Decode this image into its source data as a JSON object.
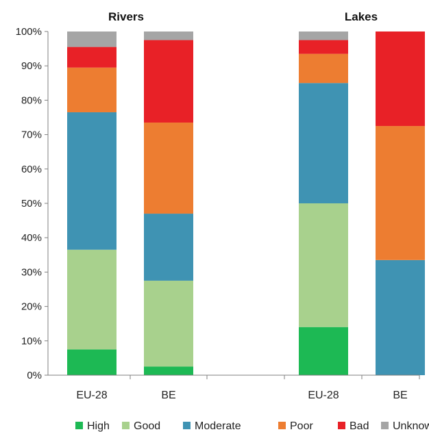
{
  "chart_data": {
    "type": "bar",
    "stacked": true,
    "percent": true,
    "groups": [
      "Rivers",
      "Lakes"
    ],
    "categories": [
      "EU-28",
      "BE",
      "EU-28",
      "BE"
    ],
    "category_groups": [
      "Rivers",
      "Rivers",
      "Lakes",
      "Lakes"
    ],
    "ylim": [
      0,
      100
    ],
    "yticks": [
      "0%",
      "10%",
      "20%",
      "30%",
      "40%",
      "50%",
      "60%",
      "70%",
      "80%",
      "90%",
      "100%"
    ],
    "grid": false,
    "legend_position": "bottom",
    "series": [
      {
        "name": "High",
        "color": "#1db954",
        "values": [
          7.5,
          2.5,
          14,
          0
        ]
      },
      {
        "name": "Good",
        "color": "#a8d18d",
        "values": [
          29,
          25,
          36,
          0
        ]
      },
      {
        "name": "Moderate",
        "color": "#3f93b3",
        "values": [
          40,
          19.5,
          35,
          33.5
        ]
      },
      {
        "name": "Poor",
        "color": "#ed7d31",
        "values": [
          13,
          26.5,
          8.5,
          39
        ]
      },
      {
        "name": "Bad",
        "color": "#e82127",
        "values": [
          6,
          24,
          4,
          27.5
        ]
      },
      {
        "name": "Unknown",
        "color": "#a5a5a5",
        "values": [
          4.5,
          2.5,
          2.5,
          0
        ]
      }
    ]
  }
}
